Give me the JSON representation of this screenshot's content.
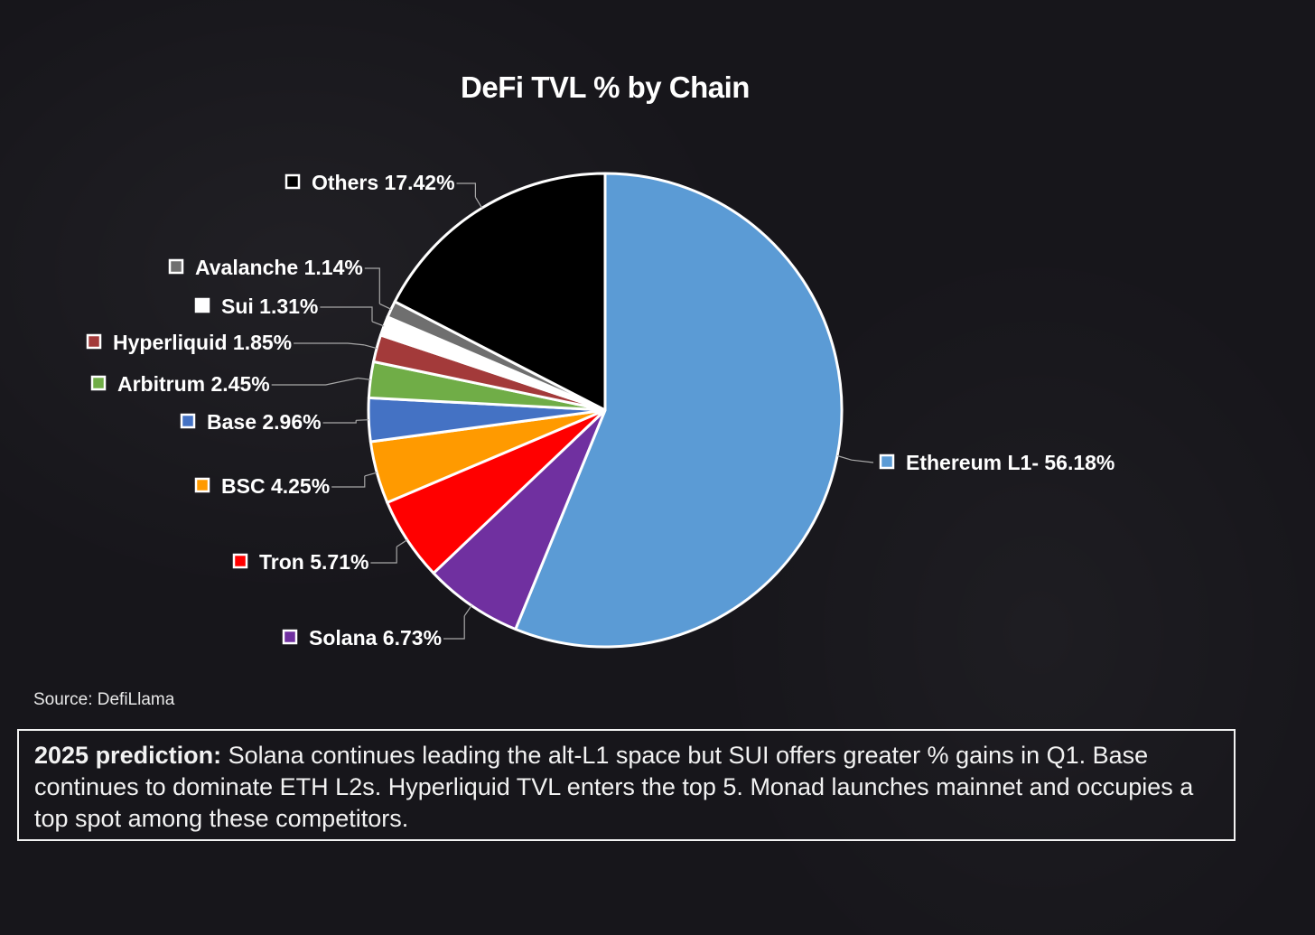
{
  "chart_data": {
    "type": "pie",
    "title": "DeFi TVL % by Chain",
    "unit": "%",
    "slices": [
      {
        "name": "Ethereum L1",
        "value": 56.18,
        "label": "Ethereum L1- 56.18%",
        "color": "#5b9bd5"
      },
      {
        "name": "Solana",
        "value": 6.73,
        "label": "Solana 6.73%",
        "color": "#7030a0"
      },
      {
        "name": "Tron",
        "value": 5.71,
        "label": "Tron 5.71%",
        "color": "#ff0000"
      },
      {
        "name": "BSC",
        "value": 4.25,
        "label": "BSC 4.25%",
        "color": "#ff9a00"
      },
      {
        "name": "Base",
        "value": 2.96,
        "label": "Base 2.96%",
        "color": "#4472c4"
      },
      {
        "name": "Arbitrum",
        "value": 2.45,
        "label": "Arbitrum 2.45%",
        "color": "#70ad47"
      },
      {
        "name": "Hyperliquid",
        "value": 1.85,
        "label": "Hyperliquid 1.85%",
        "color": "#a33a3a"
      },
      {
        "name": "Sui",
        "value": 1.31,
        "label": "Sui 1.31%",
        "color": "#ffffff"
      },
      {
        "name": "Avalanche",
        "value": 1.14,
        "label": "Avalanche 1.14%",
        "color": "#6f6f6f"
      },
      {
        "name": "Others",
        "value": 17.42,
        "label": "Others 17.42%",
        "color": "#000000"
      }
    ],
    "start_angle_deg": 0,
    "direction": "clockwise"
  },
  "source": "Source: DefiLlama",
  "prediction": {
    "lead": "2025 prediction:",
    "text": " Solana continues leading the alt-L1 space but SUI offers greater % gains in Q1. Base continues to dominate ETH L2s. Hyperliquid TVL enters the top 5. Monad launches mainnet and occupies a top spot among these competitors."
  }
}
